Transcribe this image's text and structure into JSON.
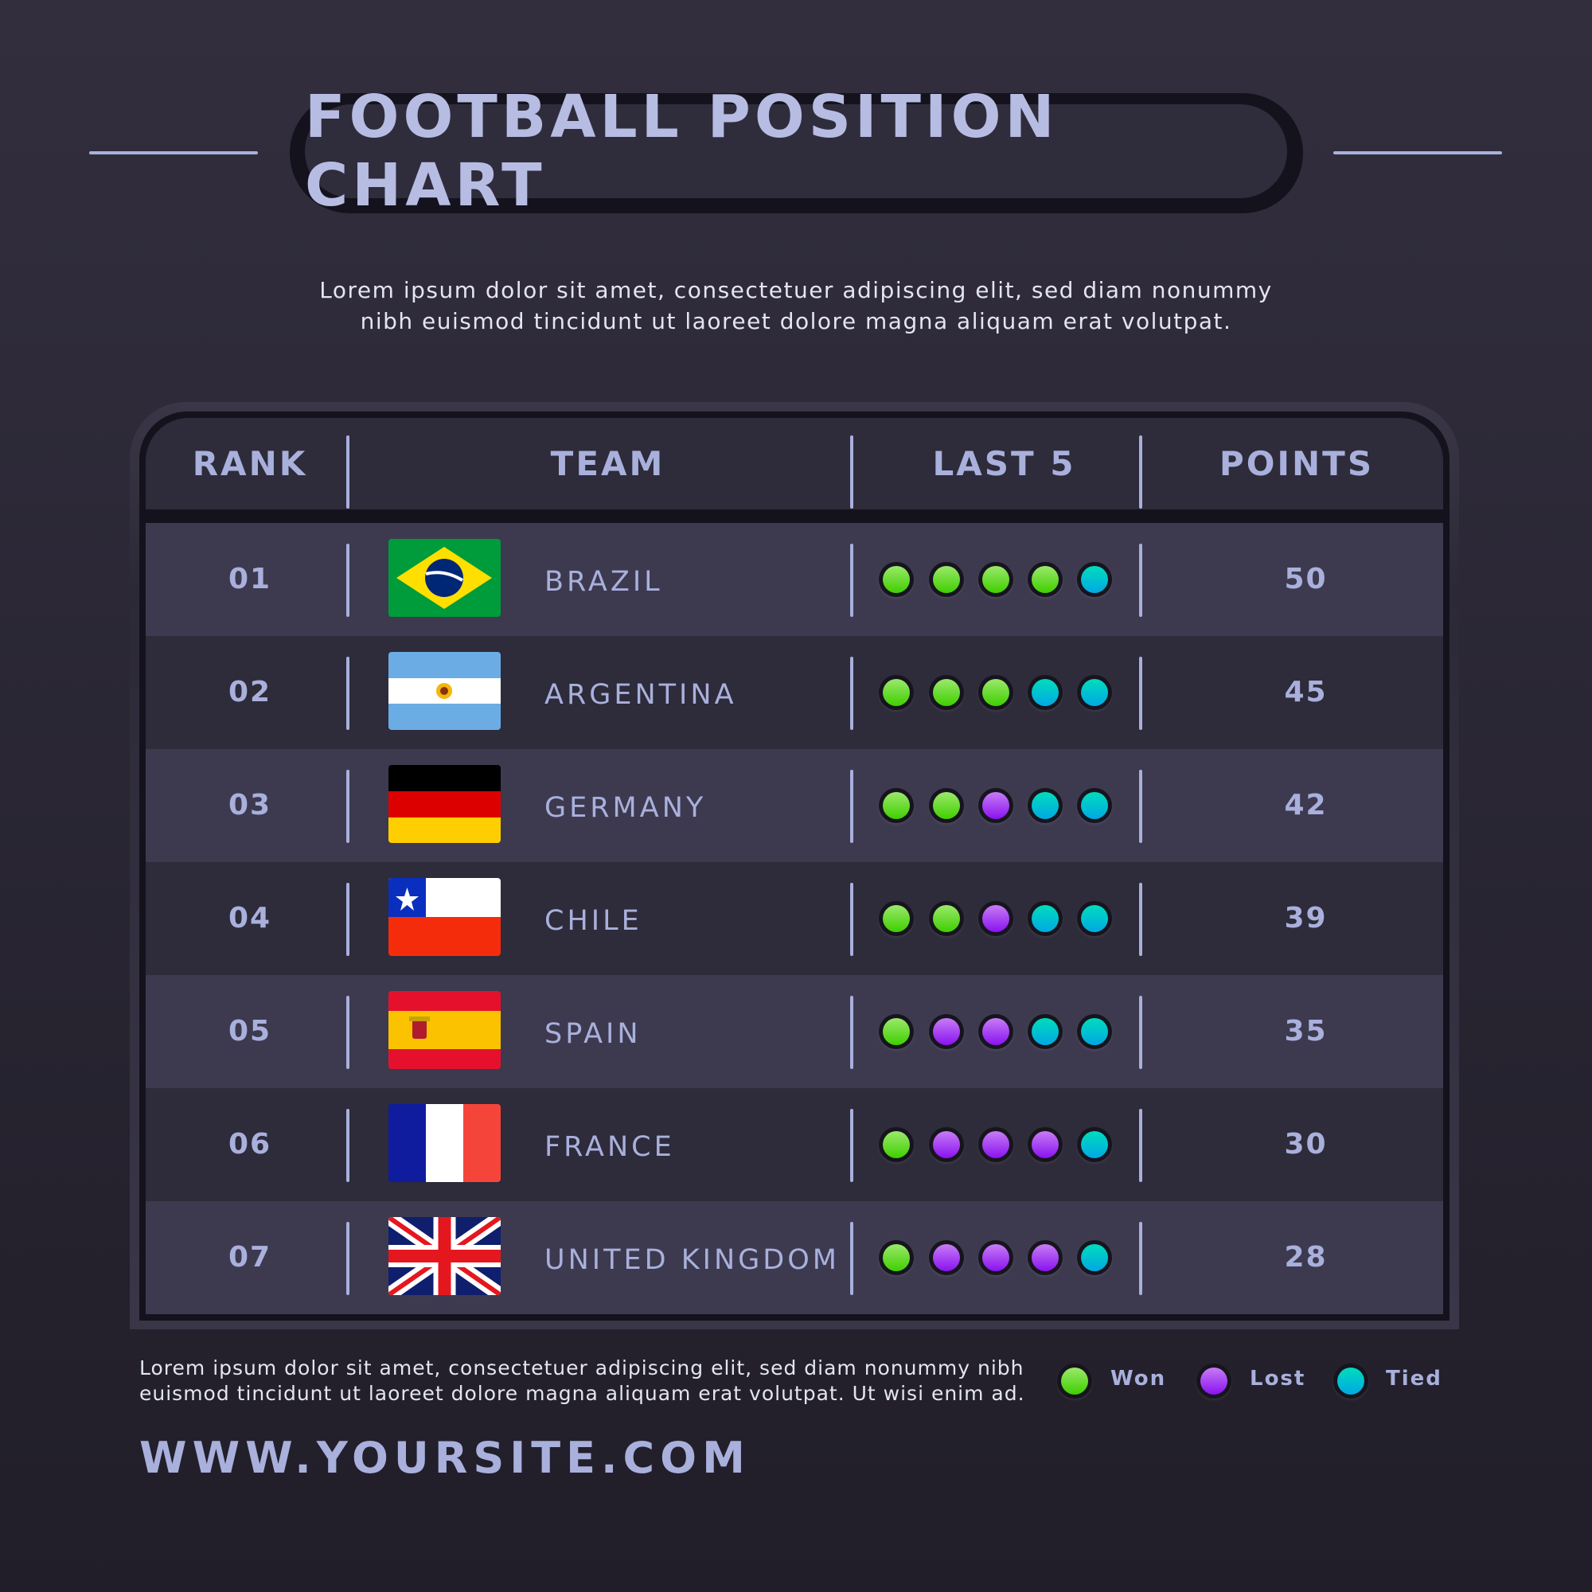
{
  "title": "FOOTBALL POSITION CHART",
  "subtitle": [
    "Lorem ipsum dolor sit amet, consectetuer adipiscing elit, sed diam nonummy",
    "nibh euismod tincidunt ut laoreet dolore magna aliquam erat volutpat."
  ],
  "table": {
    "headers": {
      "rank": "RANK",
      "team": "TEAM",
      "last5": "LAST 5",
      "points": "POINTS"
    },
    "rows": [
      {
        "rank": "01",
        "team": "BRAZIL",
        "flag": "brazil",
        "last5": [
          "won",
          "won",
          "won",
          "won",
          "tied"
        ],
        "points": "50"
      },
      {
        "rank": "02",
        "team": "ARGENTINA",
        "flag": "argentina",
        "last5": [
          "won",
          "won",
          "won",
          "tied",
          "tied"
        ],
        "points": "45"
      },
      {
        "rank": "03",
        "team": "GERMANY",
        "flag": "germany",
        "last5": [
          "won",
          "won",
          "lost",
          "tied",
          "tied"
        ],
        "points": "42"
      },
      {
        "rank": "04",
        "team": "CHILE",
        "flag": "chile",
        "last5": [
          "won",
          "won",
          "lost",
          "tied",
          "tied"
        ],
        "points": "39"
      },
      {
        "rank": "05",
        "team": "SPAIN",
        "flag": "spain",
        "last5": [
          "won",
          "lost",
          "lost",
          "tied",
          "tied"
        ],
        "points": "35"
      },
      {
        "rank": "06",
        "team": "FRANCE",
        "flag": "france",
        "last5": [
          "won",
          "lost",
          "lost",
          "lost",
          "tied"
        ],
        "points": "30"
      },
      {
        "rank": "07",
        "team": "UNITED KINGDOM",
        "flag": "united-kingdom",
        "last5": [
          "won",
          "lost",
          "lost",
          "lost",
          "tied"
        ],
        "points": "28"
      }
    ]
  },
  "footer": {
    "text": [
      "Lorem ipsum dolor sit amet, consectetuer adipiscing elit, sed diam nonummy nibh",
      "euismod tincidunt ut laoreet dolore magna aliquam erat volutpat. Ut wisi enim ad."
    ],
    "url": "WWW.YOURSITE.COM"
  },
  "legend": {
    "won": "Won",
    "lost": "Lost",
    "tied": "Tied"
  },
  "colors": {
    "won": "#4fd60f",
    "lost": "#a43ef2",
    "tied": "#00c2d0",
    "text": "#a9b0dc",
    "row_light": "#3d3a50",
    "row_dark": "#2e2b3a"
  }
}
